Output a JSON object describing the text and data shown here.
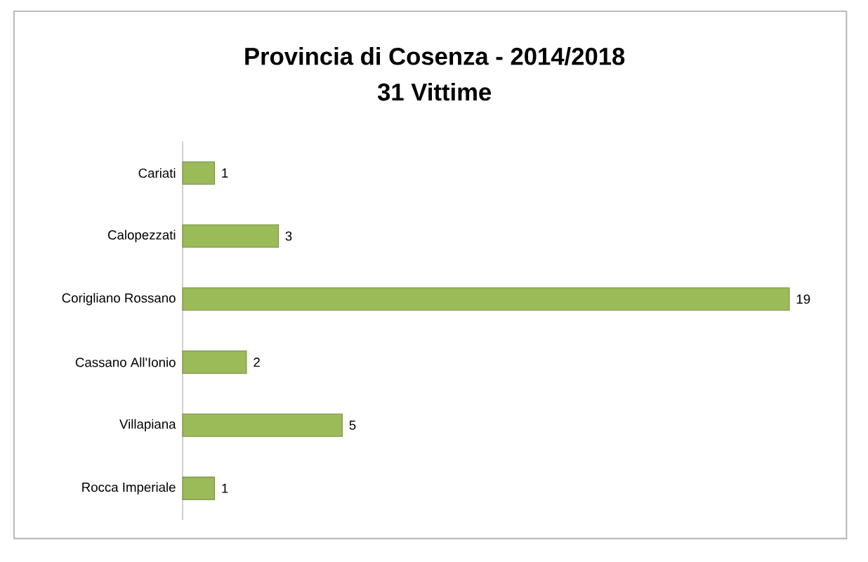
{
  "chart_data": {
    "type": "bar",
    "orientation": "horizontal",
    "title": "Provincia di Cosenza - 2014/2018",
    "subtitle": "31 Vittime",
    "categories": [
      "Cariati",
      "Calopezzati",
      "Corigliano Rossano",
      "Cassano All'Ionio",
      "Villapiana",
      "Rocca Imperiale"
    ],
    "values": [
      1,
      3,
      19,
      2,
      5,
      1
    ],
    "color": "#9bbb59",
    "data_labels": true
  }
}
